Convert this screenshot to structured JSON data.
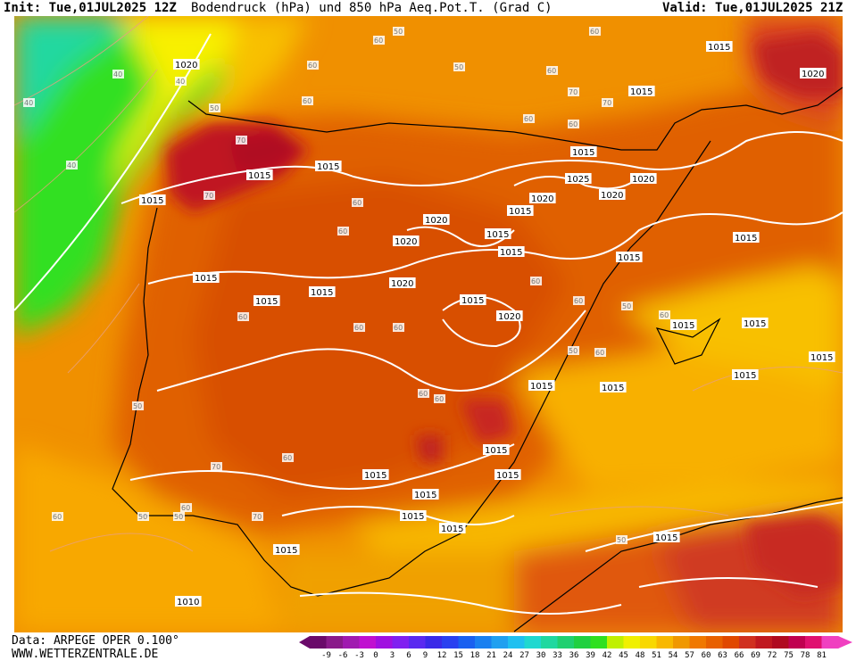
{
  "header": {
    "init": "Init: Tue,01JUL2025 12Z",
    "title": "Bodendruck (hPa) und 850 hPa Aeq.Pot.T. (Grad C)",
    "valid": "Valid: Tue,01JUL2025 21Z"
  },
  "footer": {
    "data_source": "Data: ARPEGE OPER 0.100°",
    "website": "WWW.WETTERZENTRALE.DE"
  },
  "legend": {
    "ticks": [
      "-9",
      "-6",
      "-3",
      "0",
      "3",
      "6",
      "9",
      "12",
      "15",
      "18",
      "21",
      "24",
      "27",
      "30",
      "33",
      "36",
      "39",
      "42",
      "45",
      "48",
      "51",
      "54",
      "57",
      "60",
      "63",
      "66",
      "69",
      "72",
      "75",
      "78",
      "81"
    ],
    "colors": [
      "#6a0a6a",
      "#8a1a8a",
      "#a01ab0",
      "#c010d0",
      "#a010e0",
      "#8020f0",
      "#5a2af0",
      "#3a2ae8",
      "#2a40f0",
      "#1a60f0",
      "#1a80f0",
      "#20a0f0",
      "#20c0f0",
      "#20d8d0",
      "#20d8a0",
      "#20d070",
      "#20d040",
      "#30e020",
      "#c0f000",
      "#f0f000",
      "#f8d800",
      "#f8b800",
      "#f09800",
      "#f07800",
      "#e86000",
      "#e04800",
      "#d03020",
      "#c01820",
      "#b00a20",
      "#c00050",
      "#e01070",
      "#f040c0"
    ]
  },
  "isobar_labels": [
    "1020",
    "1015",
    "1015",
    "1015",
    "1025",
    "1020",
    "1020",
    "1020",
    "1020",
    "1015",
    "1015",
    "1015",
    "1015",
    "1020",
    "1015",
    "1020",
    "1015",
    "1015",
    "1015",
    "1015",
    "1020",
    "1020",
    "1015",
    "1015",
    "1015",
    "1015",
    "1015",
    "1015",
    "1015",
    "1010",
    "1015",
    "1015",
    "1015",
    "1015",
    "1015",
    "1015",
    "1015",
    "1015",
    "1015",
    "1015"
  ],
  "theta_labels": [
    "40",
    "40",
    "40",
    "40",
    "50",
    "60",
    "60",
    "70",
    "70",
    "60",
    "50",
    "60",
    "50",
    "60",
    "60",
    "70",
    "70",
    "60",
    "60",
    "60",
    "50",
    "60",
    "60",
    "60",
    "60",
    "50",
    "50",
    "50",
    "50",
    "60",
    "60",
    "60",
    "60",
    "60",
    "60",
    "70",
    "70",
    "60",
    "50",
    "60"
  ]
}
